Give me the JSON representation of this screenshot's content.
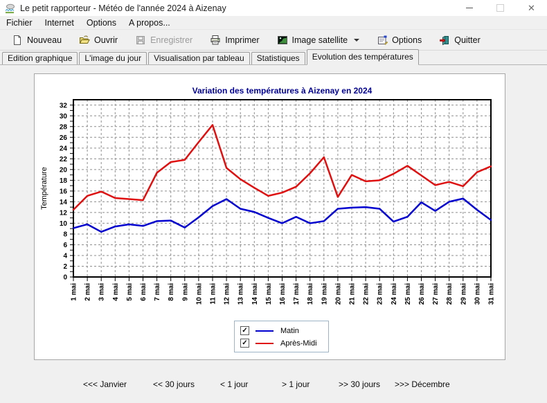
{
  "window": {
    "title": "Le petit rapporteur - Météo de l'année 2024 à Aizenay"
  },
  "menu": {
    "items": [
      {
        "label": "Fichier"
      },
      {
        "label": "Internet"
      },
      {
        "label": "Options"
      },
      {
        "label": "A propos..."
      }
    ]
  },
  "toolbar": {
    "buttons": [
      {
        "label": "Nouveau",
        "icon": "new-document-icon",
        "enabled": true
      },
      {
        "label": "Ouvrir",
        "icon": "open-folder-icon",
        "enabled": true
      },
      {
        "label": "Enregistrer",
        "icon": "save-icon",
        "enabled": false
      },
      {
        "label": "Imprimer",
        "icon": "printer-icon",
        "enabled": true
      },
      {
        "label": "Image satellite",
        "icon": "satellite-image-icon",
        "enabled": true,
        "has_dropdown": true
      },
      {
        "label": "Options",
        "icon": "options-icon",
        "enabled": true
      },
      {
        "label": "Quitter",
        "icon": "quit-door-icon",
        "enabled": true
      }
    ]
  },
  "tabs": [
    {
      "label": "Edition graphique",
      "active": false
    },
    {
      "label": "L'image du jour",
      "active": false
    },
    {
      "label": "Visualisation par tableau",
      "active": false
    },
    {
      "label": "Statistiques",
      "active": false
    },
    {
      "label": "Evolution des températures",
      "active": true
    }
  ],
  "chart_data": {
    "type": "line",
    "title": "Variation des températures à Aizenay en 2024",
    "title_color": "#000099",
    "ylabel": "Température",
    "ylim": [
      0,
      33
    ],
    "ytick_step": 2,
    "ytick_max": 32,
    "grid": true,
    "legend_position": "bottom",
    "x": [
      "1 mai",
      "2 mai",
      "3 mai",
      "4 mai",
      "5 mai",
      "6 mai",
      "7 mai",
      "8 mai",
      "9 mai",
      "10 mai",
      "11 mai",
      "12 mai",
      "13 mai",
      "14 mai",
      "15 mai",
      "16 mai",
      "17 mai",
      "18 mai",
      "19 mai",
      "20 mai",
      "21 mai",
      "22 mai",
      "23 mai",
      "24 mai",
      "25 mai",
      "26 mai",
      "27 mai",
      "28 mai",
      "29 mai",
      "30 mai",
      "31 mai"
    ],
    "series": [
      {
        "name": "Matin",
        "color": "#0000d0",
        "values": [
          9.1,
          9.8,
          8.4,
          9.4,
          9.8,
          9.5,
          10.4,
          10.5,
          9.2,
          11.1,
          13.2,
          14.5,
          12.7,
          12.1,
          11.0,
          10.0,
          11.2,
          10.0,
          10.4,
          12.7,
          12.9,
          13.0,
          12.7,
          10.3,
          11.2,
          13.9,
          12.3,
          14.0,
          14.6,
          12.5,
          10.6
        ]
      },
      {
        "name": "Après-Midi",
        "color": "#e01010",
        "values": [
          12.5,
          15.1,
          15.9,
          14.7,
          14.5,
          14.3,
          19.4,
          21.4,
          21.8,
          25.1,
          28.3,
          20.3,
          18.2,
          16.6,
          15.1,
          15.7,
          16.8,
          19.3,
          22.3,
          14.9,
          19.0,
          17.8,
          18.0,
          19.2,
          20.7,
          18.9,
          17.1,
          17.7,
          16.9,
          19.5,
          20.6
        ]
      }
    ]
  },
  "legend": {
    "check_glyph": "✓",
    "items": [
      {
        "label": "Matin",
        "color": "#0000d0",
        "checked": true
      },
      {
        "label": "Après-Midi",
        "color": "#e01010",
        "checked": true
      }
    ]
  },
  "nav": {
    "items": [
      "<<< Janvier",
      "<< 30 jours",
      "< 1 jour",
      "> 1 jour",
      ">> 30 jours",
      ">>> Décembre"
    ]
  }
}
